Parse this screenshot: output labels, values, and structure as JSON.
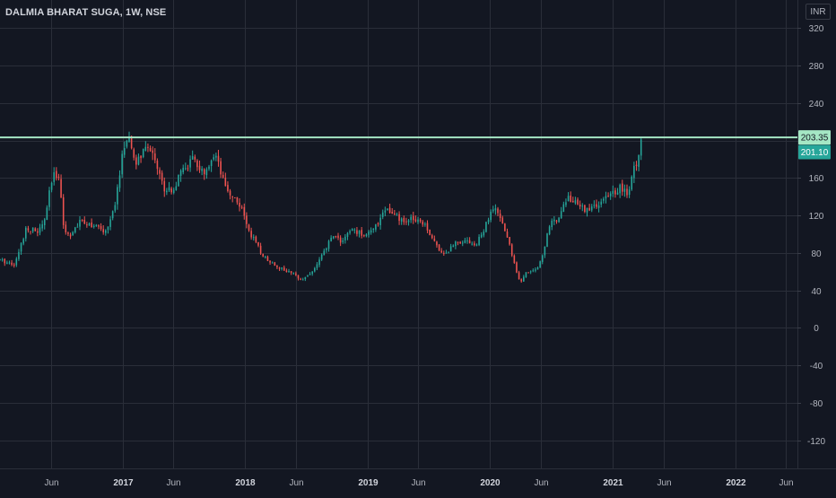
{
  "header": {
    "title": "DALMIA BHARAT SUGA, 1W, NSE",
    "currency": "INR"
  },
  "colors": {
    "background": "#131722",
    "grid": "#2a2e39",
    "axis_text": "#b2b5be",
    "up": "#26a69a",
    "down": "#ef5350",
    "hline": "#a5e7c5",
    "price_tag": "#26a69a",
    "hline_tag": "#a5e7c5"
  },
  "chart_data": {
    "type": "candlestick",
    "title": "DALMIA BHARAT SUGA, 1W, NSE",
    "y_axis": {
      "ticks": [
        320,
        280,
        240,
        200,
        160,
        120,
        80,
        40,
        0,
        -40,
        -80,
        -120
      ],
      "tick_labels": [
        "320",
        "280",
        "240",
        "",
        "160",
        "120",
        "80",
        "40",
        "0",
        "-40",
        "-80",
        "-120"
      ],
      "range": [
        -150,
        350
      ],
      "side": "right"
    },
    "x_axis": {
      "ticks": [
        "2016-06-01",
        "2017-01-01",
        "2017-06-01",
        "2018-01-01",
        "2018-06-01",
        "2019-01-01",
        "2019-06-01",
        "2020-01-01",
        "2020-06-01",
        "2021-01-01",
        "2021-06-01",
        "2022-01-01",
        "2022-06-01"
      ],
      "tick_labels": [
        "Jun",
        "2017",
        "Jun",
        "2018",
        "Jun",
        "2019",
        "Jun",
        "2020",
        "Jun",
        "2021",
        "Jun",
        "2022",
        "Jun"
      ],
      "range": [
        "2016-01-01",
        "2022-07-05"
      ]
    },
    "grid": true,
    "horizontal_line": {
      "value": 203.35,
      "label": "203.35"
    },
    "last_price": {
      "value": 201.1,
      "label": "201.10"
    },
    "price_path": [
      [
        "2016-01-01",
        72
      ],
      [
        "2016-02-15",
        68
      ],
      [
        "2016-03-20",
        108
      ],
      [
        "2016-04-20",
        102
      ],
      [
        "2016-05-10",
        110
      ],
      [
        "2016-06-05",
        160
      ],
      [
        "2016-06-25",
        165
      ],
      [
        "2016-07-10",
        102
      ],
      [
        "2016-08-01",
        100
      ],
      [
        "2016-09-01",
        115
      ],
      [
        "2016-10-01",
        110
      ],
      [
        "2016-11-10",
        102
      ],
      [
        "2016-12-10",
        130
      ],
      [
        "2017-01-01",
        192
      ],
      [
        "2017-01-20",
        198
      ],
      [
        "2017-02-10",
        175
      ],
      [
        "2017-03-01",
        188
      ],
      [
        "2017-04-01",
        190
      ],
      [
        "2017-05-01",
        150
      ],
      [
        "2017-06-01",
        148
      ],
      [
        "2017-07-01",
        170
      ],
      [
        "2017-08-01",
        180
      ],
      [
        "2017-09-01",
        162
      ],
      [
        "2017-10-05",
        182
      ],
      [
        "2017-11-01",
        150
      ],
      [
        "2017-12-15",
        132
      ],
      [
        "2018-01-15",
        102
      ],
      [
        "2018-02-20",
        78
      ],
      [
        "2018-03-20",
        70
      ],
      [
        "2018-04-20",
        63
      ],
      [
        "2018-05-20",
        58
      ],
      [
        "2018-06-20",
        52
      ],
      [
        "2018-07-20",
        60
      ],
      [
        "2018-08-20",
        78
      ],
      [
        "2018-09-20",
        100
      ],
      [
        "2018-10-15",
        92
      ],
      [
        "2018-11-15",
        105
      ],
      [
        "2018-12-15",
        100
      ],
      [
        "2019-01-20",
        104
      ],
      [
        "2019-02-20",
        128
      ],
      [
        "2019-03-20",
        120
      ],
      [
        "2019-04-20",
        112
      ],
      [
        "2019-05-20",
        118
      ],
      [
        "2019-06-20",
        112
      ],
      [
        "2019-07-20",
        90
      ],
      [
        "2019-08-20",
        78
      ],
      [
        "2019-09-20",
        92
      ],
      [
        "2019-10-20",
        94
      ],
      [
        "2019-11-20",
        88
      ],
      [
        "2019-12-20",
        110
      ],
      [
        "2020-01-10",
        128
      ],
      [
        "2020-01-30",
        118
      ],
      [
        "2020-02-20",
        98
      ],
      [
        "2020-03-15",
        66
      ],
      [
        "2020-04-01",
        48
      ],
      [
        "2020-04-20",
        60
      ],
      [
        "2020-05-15",
        62
      ],
      [
        "2020-06-01",
        72
      ],
      [
        "2020-06-25",
        108
      ],
      [
        "2020-07-20",
        118
      ],
      [
        "2020-08-20",
        140
      ],
      [
        "2020-09-20",
        130
      ],
      [
        "2020-10-20",
        126
      ],
      [
        "2020-11-20",
        132
      ],
      [
        "2020-12-20",
        140
      ],
      [
        "2021-01-20",
        150
      ],
      [
        "2021-02-15",
        142
      ],
      [
        "2021-03-01",
        166
      ],
      [
        "2021-03-20",
        182
      ],
      [
        "2021-04-01",
        201.1
      ]
    ]
  }
}
